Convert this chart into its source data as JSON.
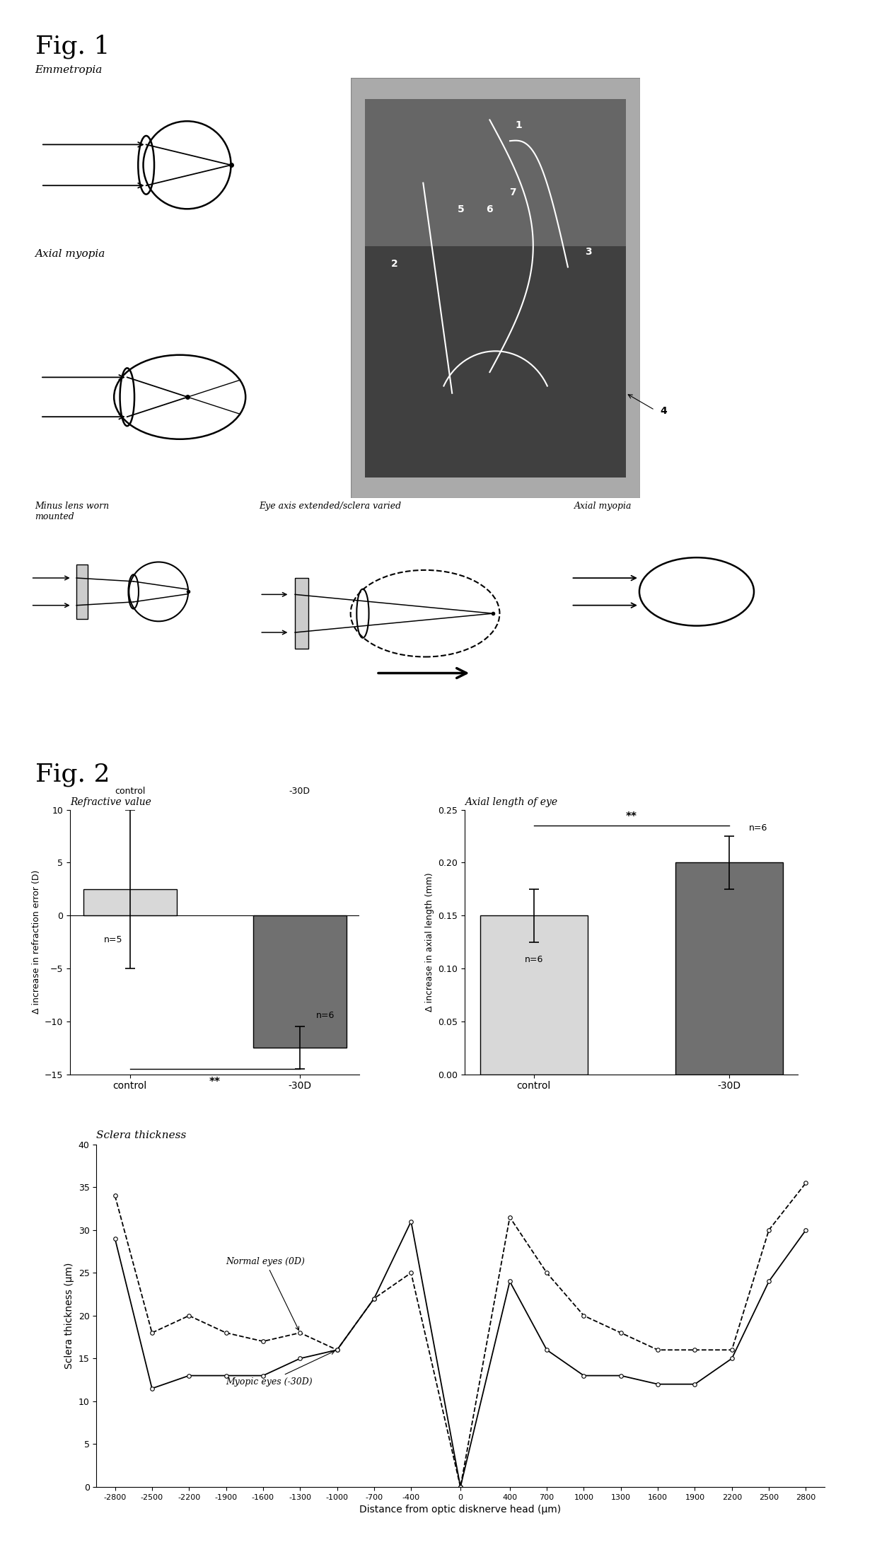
{
  "fig1_label": "Fig. 1",
  "fig2_label": "Fig. 2",
  "emmetropia_label": "Emmetropia",
  "axial_myopia_label": "Axial myopia",
  "minus_lens_label": "Minus lens worn\nmounted",
  "eye_axis_label": "Eye axis extended/sclera varied",
  "axial_myopia2_label": "Axial myopia",
  "refractive_title": "Refractive value",
  "axial_title": "Axial length of eye",
  "sclera_title": "Sclera thickness",
  "bar1_ylabel": "Δ increase in refraction error (D)",
  "bar2_ylabel": "Δ increase in axial length (mm)",
  "sclera_ylabel": "Sclera thickness (μm)",
  "sclera_xlabel": "Distance from optic disknerve head (μm)",
  "bar1_values": [
    2.5,
    -12.5
  ],
  "bar1_errors": [
    7.5,
    2.0
  ],
  "bar1_colors": [
    "#d8d8d8",
    "#707070"
  ],
  "bar1_labels": [
    "control",
    "-30D"
  ],
  "bar1_n": [
    "n=5",
    "n=6"
  ],
  "bar1_ylim": [
    -15.0,
    10.0
  ],
  "bar1_yticks": [
    10.0,
    5.0,
    0.0,
    -5.0,
    -10.0,
    -15.0
  ],
  "bar2_values": [
    0.15,
    0.2
  ],
  "bar2_errors": [
    0.025,
    0.025
  ],
  "bar2_colors": [
    "#d8d8d8",
    "#707070"
  ],
  "bar2_labels": [
    "control",
    "-30D"
  ],
  "bar2_n": [
    "n=6",
    "n=6"
  ],
  "bar2_ylim": [
    0.0,
    0.25
  ],
  "bar2_yticks": [
    0.0,
    0.05,
    0.1,
    0.15,
    0.2,
    0.25
  ],
  "sclera_x": [
    -2800,
    -2500,
    -2200,
    -1900,
    -1600,
    -1300,
    -1000,
    -700,
    -400,
    0,
    400,
    700,
    1000,
    1300,
    1600,
    1900,
    2200,
    2500,
    2800
  ],
  "normal_y": [
    34,
    18,
    20,
    18,
    17,
    18,
    16,
    22,
    25,
    0,
    31.5,
    25,
    20,
    18,
    16,
    16,
    16,
    30,
    35.5
  ],
  "myopic_y": [
    29,
    11.5,
    13,
    13,
    13,
    15,
    16,
    22,
    31,
    0,
    24,
    16,
    13,
    13,
    12,
    12,
    15,
    24,
    30
  ],
  "sclera_ylim": [
    0,
    40
  ],
  "sclera_yticks": [
    0,
    5,
    10,
    15,
    20,
    25,
    30,
    35,
    40
  ],
  "background_color": "#ffffff"
}
